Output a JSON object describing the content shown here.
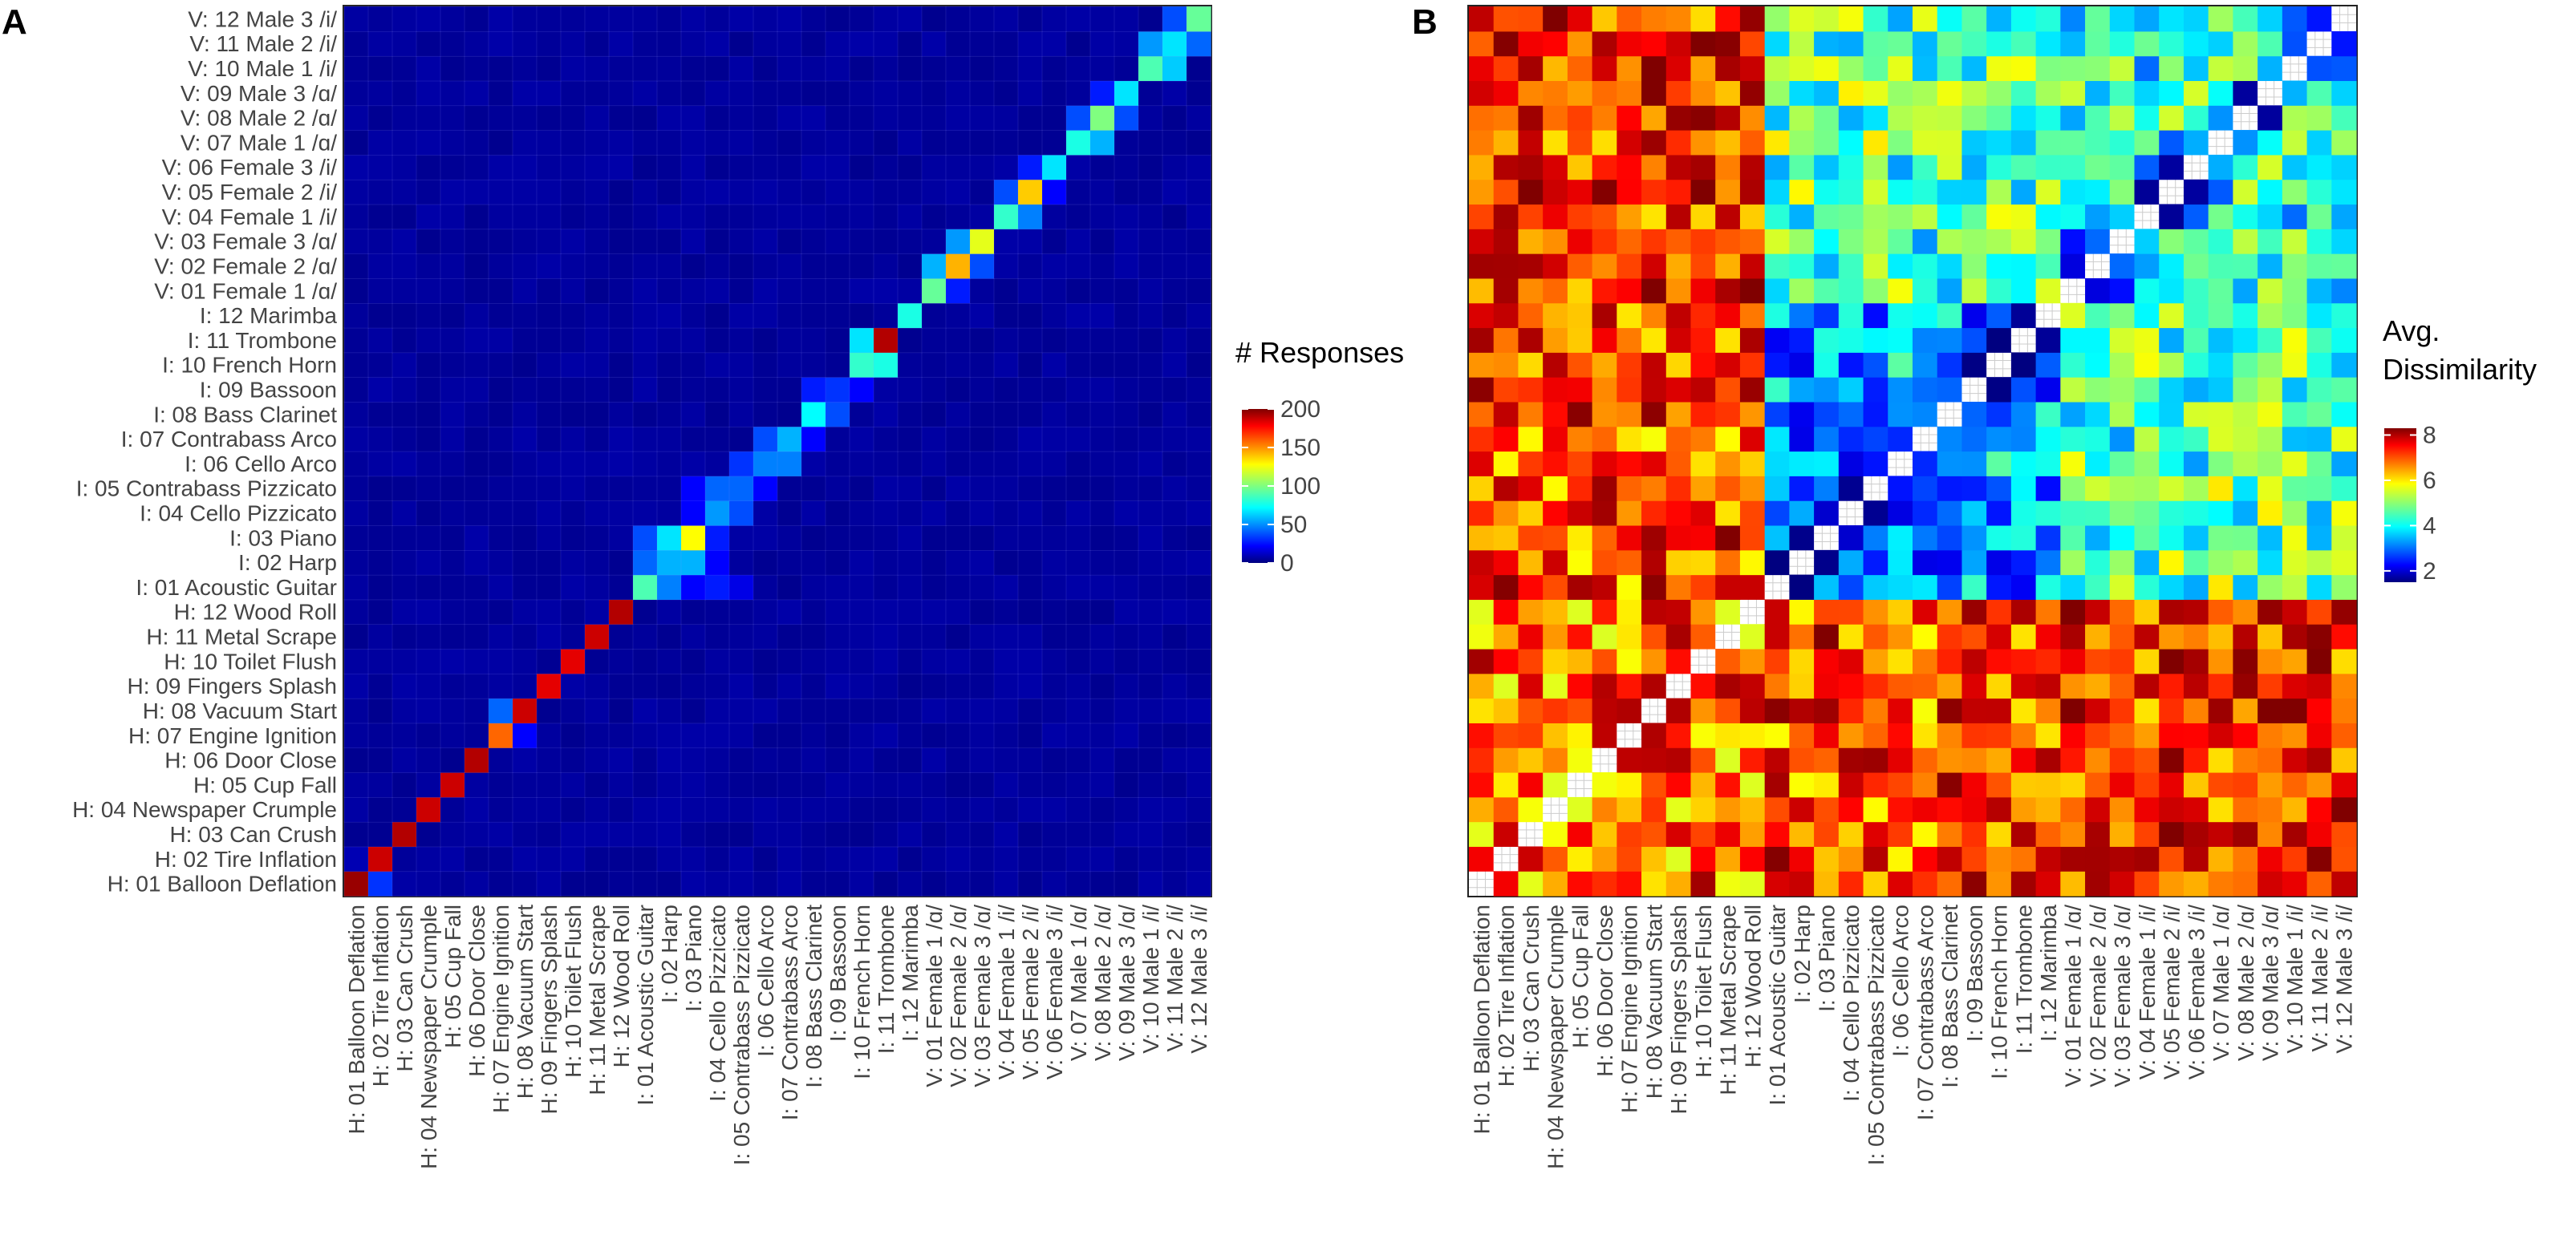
{
  "stimuli": [
    "H: 01 Balloon Deflation",
    "H: 02 Tire Inflation",
    "H: 03 Can Crush",
    "H: 04 Newspaper Crumple",
    "H: 05 Cup Fall",
    "H: 06 Door Close",
    "H: 07 Engine Ignition",
    "H: 08 Vacuum Start",
    "H: 09 Fingers Splash",
    "H: 10 Toilet Flush",
    "H: 11 Metal Scrape",
    "H: 12 Wood Roll",
    "I: 01 Acoustic Guitar",
    "I: 02 Harp",
    "I: 03 Piano",
    "I: 04 Cello Pizzicato",
    "I: 05 Contrabass Pizzicato",
    "I: 06 Cello Arco",
    "I: 07 Contrabass Arco",
    "I: 08 Bass Clarinet",
    "I: 09 Bassoon",
    "I: 10 French Horn",
    "I: 11 Trombone",
    "I: 12 Marimba",
    "V: 01 Female 1 /ɑ/",
    "V: 02 Female 2 /ɑ/",
    "V: 03 Female 3 /ɑ/",
    "V: 04 Female 1 /i/",
    "V: 05 Female 2 /i/",
    "V: 06 Female 3 /i/",
    "V: 07 Male 1 /ɑ/",
    "V: 08 Male 2 /ɑ/",
    "V: 09 Male 3 /ɑ/",
    "V: 10 Male 1 /i/",
    "V: 11 Male 2 /i/",
    "V: 12 Male 3 /i/"
  ],
  "chart_data": [
    {
      "panel": "A",
      "type": "heatmap",
      "title": "",
      "xlabel": "",
      "ylabel": "",
      "legend_title": "# Responses",
      "legend_ticks": [
        0,
        50,
        100,
        150,
        200
      ],
      "value_range": [
        0,
        200
      ],
      "default_value": 3,
      "diagonal": [
        195,
        185,
        190,
        185,
        185,
        190,
        155,
        185,
        180,
        180,
        185,
        190,
        90,
        60,
        125,
        55,
        45,
        50,
        60,
        75,
        35,
        85,
        190,
        80,
        95,
        140,
        120,
        85,
        135,
        70,
        80,
        100,
        70,
        90,
        70,
        95
      ],
      "cells": [
        [
          0,
          1,
          35
        ],
        [
          1,
          0,
          10
        ],
        [
          12,
          13,
          50
        ],
        [
          13,
          12,
          45
        ],
        [
          12,
          14,
          25
        ],
        [
          14,
          12,
          40
        ],
        [
          13,
          14,
          60
        ],
        [
          14,
          13,
          70
        ],
        [
          15,
          16,
          40
        ],
        [
          16,
          15,
          45
        ],
        [
          15,
          14,
          25
        ],
        [
          16,
          17,
          25
        ],
        [
          17,
          16,
          35
        ],
        [
          17,
          18,
          50
        ],
        [
          18,
          17,
          40
        ],
        [
          18,
          19,
          25
        ],
        [
          19,
          20,
          40
        ],
        [
          20,
          19,
          30
        ],
        [
          20,
          21,
          25
        ],
        [
          21,
          22,
          80
        ],
        [
          22,
          21,
          70
        ],
        [
          24,
          25,
          30
        ],
        [
          25,
          24,
          60
        ],
        [
          26,
          25,
          55
        ],
        [
          25,
          26,
          40
        ],
        [
          27,
          28,
          50
        ],
        [
          28,
          27,
          40
        ],
        [
          28,
          29,
          25
        ],
        [
          29,
          28,
          30
        ],
        [
          30,
          31,
          60
        ],
        [
          31,
          30,
          40
        ],
        [
          31,
          32,
          40
        ],
        [
          32,
          31,
          30
        ],
        [
          33,
          34,
          65
        ],
        [
          34,
          33,
          55
        ],
        [
          34,
          35,
          45
        ],
        [
          35,
          34,
          40
        ],
        [
          6,
          7,
          25
        ],
        [
          7,
          6,
          45
        ],
        [
          12,
          15,
          30
        ],
        [
          13,
          15,
          25
        ],
        [
          14,
          15,
          30
        ],
        [
          16,
          14,
          25
        ],
        [
          12,
          16,
          20
        ]
      ]
    },
    {
      "panel": "B",
      "type": "heatmap",
      "title": "",
      "xlabel": "",
      "ylabel": "",
      "legend_title": [
        "Avg.",
        "Dissimilarity"
      ],
      "legend_ticks": [
        2,
        4,
        6,
        8
      ],
      "value_range": [
        1.5,
        8.3
      ],
      "diagonal": "blank",
      "block_means": {
        "H-H": 6.8,
        "H-I": 7.0,
        "H-V": 7.2,
        "I-I": 3.4,
        "I-V": 4.6,
        "V-V": 4.2,
        "within_category_near_diagonal": 2.3
      }
    }
  ]
}
